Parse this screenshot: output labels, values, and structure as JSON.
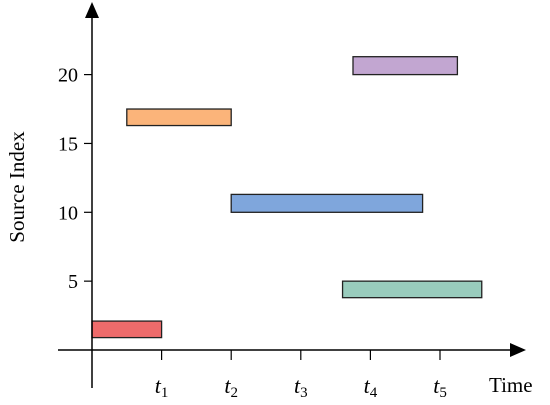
{
  "chart_data": {
    "type": "bar",
    "title": "",
    "xlabel": "Time",
    "ylabel": "Source Index",
    "xticks": [
      {
        "base": "t",
        "sub": "1"
      },
      {
        "base": "t",
        "sub": "2"
      },
      {
        "base": "t",
        "sub": "3"
      },
      {
        "base": "t",
        "sub": "4"
      },
      {
        "base": "t",
        "sub": "5"
      }
    ],
    "yticks": [
      5,
      10,
      15,
      20
    ],
    "xlim": [
      0,
      6.3
    ],
    "ylim": [
      0,
      25
    ],
    "grid": false,
    "bars": [
      {
        "name": "",
        "x_start": 0.0,
        "x_end": 1.0,
        "y_low": 0.9,
        "y_high": 2.1,
        "color": "#ee6b6b"
      },
      {
        "name": "",
        "x_start": 0.5,
        "x_end": 2.0,
        "y_low": 16.3,
        "y_high": 17.5,
        "color": "#fbb47a"
      },
      {
        "name": "",
        "x_start": 2.0,
        "x_end": 4.75,
        "y_low": 10.0,
        "y_high": 11.3,
        "color": "#7fa6dc"
      },
      {
        "name": "",
        "x_start": 3.6,
        "x_end": 5.6,
        "y_low": 3.8,
        "y_high": 5.0,
        "color": "#99ccbd"
      },
      {
        "name": "",
        "x_start": 3.75,
        "x_end": 5.25,
        "y_low": 20.0,
        "y_high": 21.3,
        "color": "#c2a6d1"
      }
    ]
  }
}
